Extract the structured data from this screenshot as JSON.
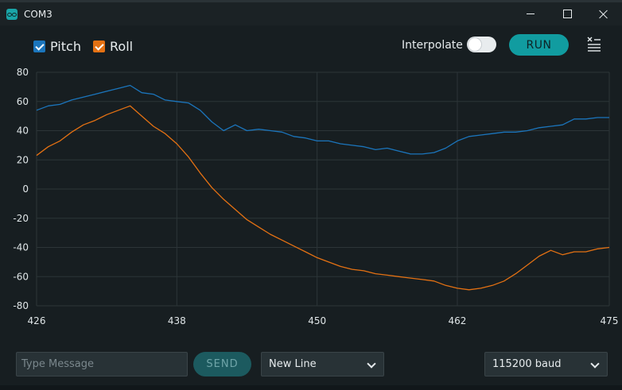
{
  "window": {
    "title": "COM3"
  },
  "toolbar": {
    "series_toggles": [
      {
        "label": "Pitch",
        "checked": true,
        "color": "#1b75bc"
      },
      {
        "label": "Roll",
        "checked": true,
        "color": "#e47113"
      }
    ],
    "interpolate_label": "Interpolate",
    "interpolate_on": false,
    "run_label": "RUN"
  },
  "chart_data": {
    "type": "line",
    "xlim": [
      426,
      475
    ],
    "ylim": [
      -80,
      80
    ],
    "x_ticks": [
      426,
      438,
      450,
      462,
      475
    ],
    "y_ticks": [
      80,
      60,
      40,
      20,
      0,
      -20,
      -40,
      -60,
      -80
    ],
    "grid": true,
    "x": [
      426,
      427,
      428,
      429,
      430,
      431,
      432,
      433,
      434,
      435,
      436,
      437,
      438,
      439,
      440,
      441,
      442,
      443,
      444,
      445,
      446,
      447,
      448,
      449,
      450,
      451,
      452,
      453,
      454,
      455,
      456,
      457,
      458,
      459,
      460,
      461,
      462,
      463,
      464,
      465,
      466,
      467,
      468,
      469,
      470,
      471,
      472,
      473,
      474,
      475
    ],
    "series": [
      {
        "name": "Pitch",
        "color": "#1b75bc",
        "values": [
          54,
          57,
          58,
          61,
          63,
          65,
          67,
          69,
          71,
          66,
          65,
          61,
          60,
          59,
          54,
          46,
          40,
          44,
          40,
          41,
          40,
          39,
          36,
          35,
          33,
          33,
          31,
          30,
          29,
          27,
          28,
          26,
          24,
          24,
          25,
          28,
          33,
          36,
          37,
          38,
          39,
          39,
          40,
          42,
          43,
          44,
          48,
          48,
          49,
          49
        ]
      },
      {
        "name": "Roll",
        "color": "#e47113",
        "values": [
          23,
          29,
          33,
          39,
          44,
          47,
          51,
          54,
          57,
          50,
          43,
          38,
          31,
          22,
          11,
          1,
          -7,
          -14,
          -21,
          -26,
          -31,
          -35,
          -39,
          -43,
          -47,
          -50,
          -53,
          -55,
          -56,
          -58,
          -59,
          -60,
          -61,
          -62,
          -63,
          -66,
          -68,
          -69,
          -68,
          -66,
          -63,
          -58,
          -52,
          -46,
          -42,
          -45,
          -43,
          -43,
          -41,
          -40
        ]
      }
    ]
  },
  "message": {
    "placeholder": "Type Message",
    "value": "",
    "send_label": "SEND"
  },
  "line_ending": {
    "selected": "New Line"
  },
  "baud": {
    "selected": "115200 baud"
  }
}
